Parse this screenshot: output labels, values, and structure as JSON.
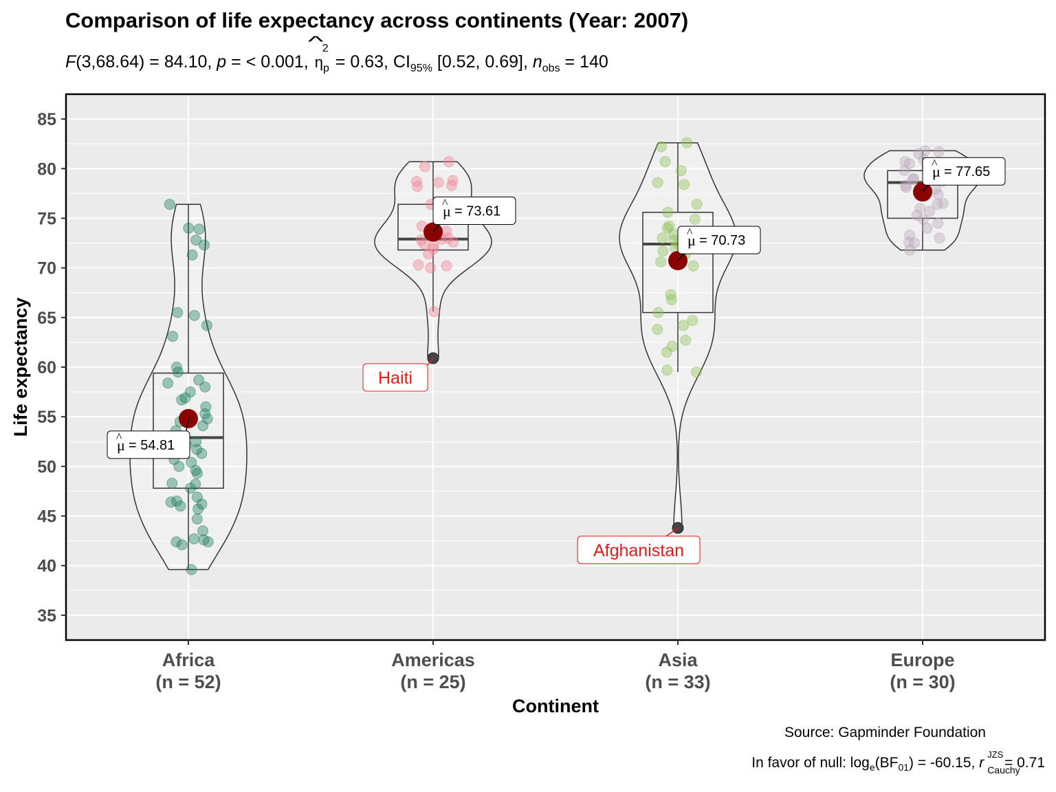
{
  "title": "Comparison of life expectancy across continents (Year: 2007)",
  "subtitle": {
    "f_symbol": "F",
    "f_stat": "(3,68.64) = 84.10, ",
    "p_symbol": "p",
    "p_text": " = < 0.001, ",
    "eta_symbol": "η",
    "eta_sub": "p",
    "eta_sup": "2",
    "eta_text": " = 0.63, CI",
    "ci_sub": "95%",
    "ci_text": " [0.52, 0.69], ",
    "n_symbol": "n",
    "n_sub": "obs",
    "n_text": " = 140"
  },
  "caption": "Source: Gapminder Foundation",
  "bayes": {
    "prefix": "In favor of null: log",
    "e_sub": "e",
    "bf_mid": "(BF",
    "bf_sub": "01",
    "bf_text": ") = -60.15, ",
    "r_symbol": "r",
    "r_sup": "JZS",
    "r_sub": "Cauchy",
    "r_text": " = 0.71"
  },
  "colors": {
    "panel_bg": "#EBEBEB",
    "gridline": "#FFFFFF",
    "mean_point": "#8B0000",
    "outlier_label": "#E41A1C",
    "africa": "#1B7D5C",
    "americas": "#F08090",
    "asia": "#8CC152",
    "europe": "#B8A8B8"
  },
  "chart_data": {
    "type": "violin-box-scatter",
    "title": "Comparison of life expectancy across continents (Year: 2007)",
    "xlabel": "Continent",
    "ylabel": "Life expectancy",
    "ylim": [
      32.5,
      87.5
    ],
    "y_ticks": [
      35,
      40,
      45,
      50,
      55,
      60,
      65,
      70,
      75,
      80,
      85
    ],
    "grid": true,
    "groups": [
      {
        "name": "Africa",
        "n_label": "(n = 52)",
        "color": "#1B7D5C",
        "mean": 54.81,
        "mean_label": "54.81",
        "box": {
          "q1": 47.8,
          "median": 52.9,
          "q3": 59.4,
          "whisker_low": 39.6,
          "whisker_high": 76.4
        },
        "violin_range": [
          39.6,
          76.4
        ],
        "points": [
          76.4,
          74.0,
          73.9,
          72.8,
          72.3,
          71.3,
          65.5,
          65.2,
          64.2,
          63.1,
          60.0,
          59.5,
          58.7,
          58.4,
          58.0,
          57.5,
          56.9,
          56.7,
          56.0,
          55.3,
          54.8,
          54.5,
          54.1,
          53.6,
          53.0,
          52.5,
          52.1,
          51.7,
          51.3,
          50.7,
          50.4,
          49.6,
          49.3,
          48.3,
          48.2,
          47.8,
          46.9,
          46.5,
          46.4,
          46.2,
          45.7,
          44.7,
          43.5,
          42.7,
          42.6,
          42.4,
          42.1,
          42.4,
          46.0,
          50.0,
          55.0,
          39.6
        ],
        "outliers": []
      },
      {
        "name": "Americas",
        "n_label": "(n = 25)",
        "color": "#F08090",
        "mean": 73.61,
        "mean_label": "73.61",
        "box": {
          "q1": 71.8,
          "median": 72.9,
          "q3": 76.4,
          "whisker_low": 65.6,
          "whisker_high": 80.7
        },
        "violin_range": [
          60.9,
          80.7
        ],
        "points": [
          80.7,
          80.2,
          78.8,
          78.6,
          78.3,
          78.2,
          78.7,
          76.4,
          75.5,
          75.3,
          74.2,
          73.7,
          73.0,
          72.9,
          72.8,
          72.6,
          72.4,
          72.2,
          71.9,
          71.4,
          70.3,
          70.2,
          70.0,
          65.6,
          60.9
        ],
        "outliers": [
          {
            "label": "Haiti",
            "value": 60.9
          }
        ]
      },
      {
        "name": "Asia",
        "n_label": "(n = 33)",
        "color": "#8CC152",
        "mean": 70.73,
        "mean_label": "70.73",
        "box": {
          "q1": 65.5,
          "median": 72.4,
          "q3": 75.6,
          "whisker_low": 59.5,
          "whisker_high": 82.6
        },
        "violin_range": [
          43.8,
          82.6
        ],
        "points": [
          82.6,
          82.2,
          80.7,
          79.8,
          78.6,
          78.4,
          76.4,
          75.6,
          74.9,
          74.2,
          74.0,
          73.4,
          72.9,
          72.8,
          72.4,
          72.0,
          71.7,
          71.4,
          70.6,
          70.2,
          67.3,
          66.8,
          65.5,
          64.7,
          64.2,
          63.8,
          62.7,
          62.1,
          61.5,
          59.7,
          59.5,
          73.0,
          43.8
        ],
        "outliers": [
          {
            "label": "Afghanistan",
            "value": 43.8
          }
        ]
      },
      {
        "name": "Europe",
        "n_label": "(n = 30)",
        "color": "#B8A8B8",
        "mean": 77.65,
        "mean_label": "77.65",
        "box": {
          "q1": 75.0,
          "median": 78.6,
          "q3": 79.8,
          "whisker_low": 71.8,
          "whisker_high": 81.8
        },
        "violin_range": [
          71.8,
          81.8
        ],
        "points": [
          81.8,
          81.7,
          81.5,
          80.9,
          80.7,
          80.5,
          80.2,
          79.8,
          79.4,
          79.3,
          78.9,
          78.7,
          78.3,
          78.1,
          77.9,
          77.4,
          76.5,
          76.4,
          75.7,
          75.3,
          74.9,
          74.5,
          74.0,
          73.3,
          73.0,
          72.6,
          72.5,
          71.8,
          76.0,
          79.0
        ],
        "outliers": []
      }
    ]
  }
}
